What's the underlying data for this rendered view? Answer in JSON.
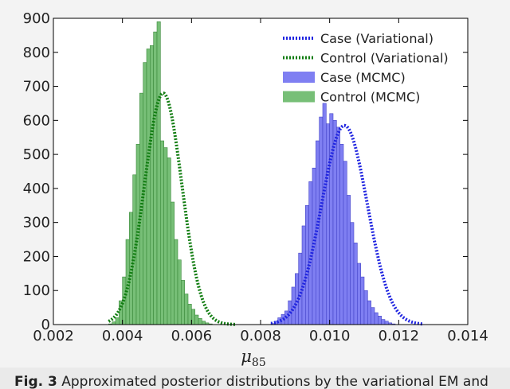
{
  "chart_data": {
    "type": "histogram",
    "xlabel": "μ",
    "xlabel_subscript": "85",
    "xlim": [
      0.002,
      0.014
    ],
    "ylim": [
      0,
      900
    ],
    "x_ticks": [
      "0.002",
      "0.004",
      "0.006",
      "0.008",
      "0.010",
      "0.012",
      "0.014"
    ],
    "x_tick_values": [
      0.002,
      0.004,
      0.006,
      0.008,
      0.01,
      0.012,
      0.014
    ],
    "y_ticks": [
      "0",
      "100",
      "200",
      "300",
      "400",
      "500",
      "600",
      "700",
      "800",
      "900"
    ],
    "y_tick_values": [
      0,
      100,
      200,
      300,
      400,
      500,
      600,
      700,
      800,
      900
    ],
    "grid": false,
    "legend_position": "top-right",
    "legend": [
      {
        "label": "Case (Variational)",
        "style": "dotted-line",
        "color": "#1f24e0"
      },
      {
        "label": "Control (Variational)",
        "style": "dotted-line",
        "color": "#107c10"
      },
      {
        "label": "Case (MCMC)",
        "style": "bar",
        "color": "#7f7ff2"
      },
      {
        "label": "Control (MCMC)",
        "style": "bar",
        "color": "#77bf77"
      }
    ],
    "series": [
      {
        "name": "Control (MCMC)",
        "kind": "histogram",
        "color": "#77bf77",
        "edge": "#3b8a3b",
        "bin_start": 0.0036,
        "bin_width": 0.0001,
        "counts": [
          2,
          8,
          20,
          70,
          140,
          250,
          330,
          440,
          530,
          680,
          770,
          810,
          820,
          860,
          890,
          540,
          520,
          490,
          360,
          250,
          190,
          130,
          90,
          60,
          45,
          28,
          18,
          10,
          5,
          2
        ]
      },
      {
        "name": "Case (MCMC)",
        "kind": "histogram",
        "color": "#7f7ff2",
        "edge": "#4545c8",
        "bin_start": 0.0083,
        "bin_width": 0.0001,
        "counts": [
          3,
          10,
          20,
          30,
          40,
          70,
          110,
          150,
          210,
          290,
          350,
          420,
          460,
          540,
          610,
          650,
          590,
          620,
          600,
          580,
          530,
          480,
          380,
          300,
          240,
          180,
          140,
          100,
          70,
          50,
          35,
          25,
          15,
          10,
          5,
          2
        ]
      },
      {
        "name": "Control (Variational)",
        "kind": "gaussian",
        "color": "#107c10",
        "mean": 0.00518,
        "sd": 0.00054,
        "peak": 680,
        "range": [
          0.0036,
          0.0073
        ]
      },
      {
        "name": "Case (Variational)",
        "kind": "gaussian",
        "color": "#1f24e0",
        "mean": 0.01043,
        "sd": 0.00066,
        "peak": 585,
        "range": [
          0.0083,
          0.0127
        ]
      }
    ]
  },
  "caption": {
    "prefix": "Fig. 3",
    "text": " Approximated posterior distributions by the variational EM and"
  }
}
